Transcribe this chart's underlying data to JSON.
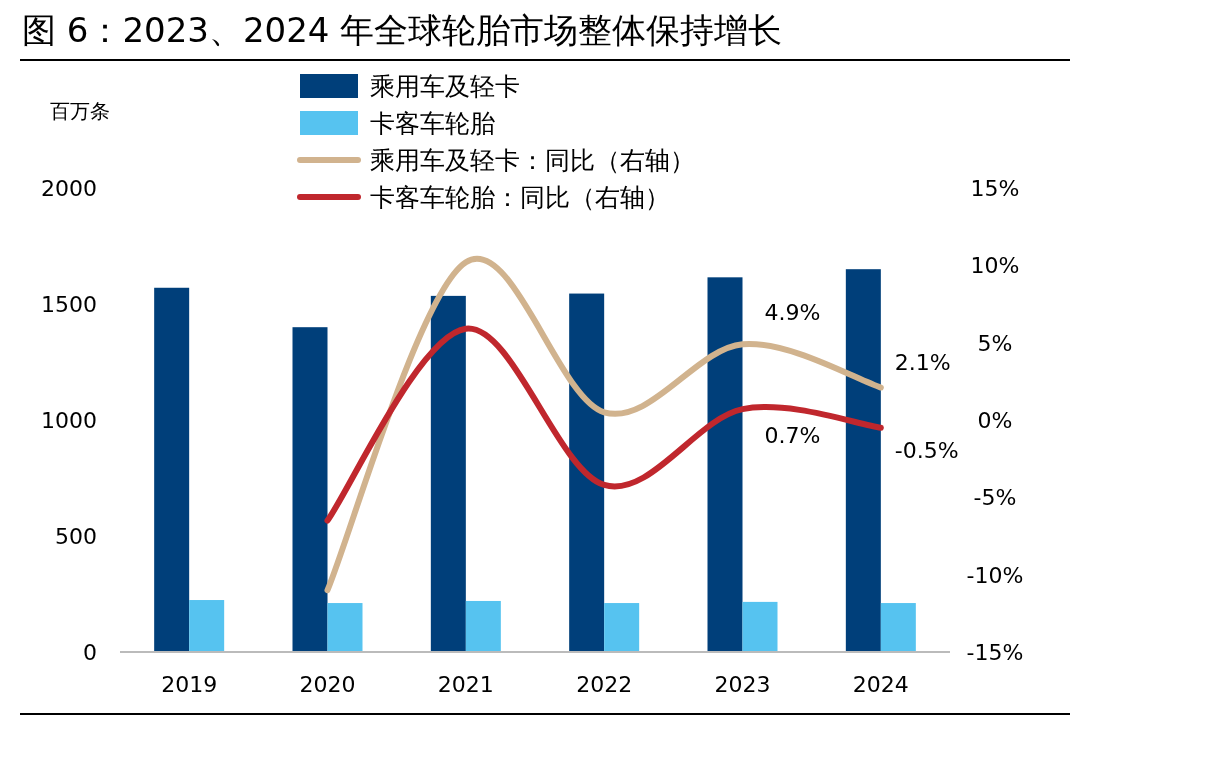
{
  "chart_data": {
    "type": "bar",
    "title": "图 6：2023、2024 年全球轮胎市场整体保持增长",
    "ylabel": "百万条",
    "categories": [
      "2019",
      "2020",
      "2021",
      "2022",
      "2023",
      "2024"
    ],
    "series": [
      {
        "name": "乘用车及轻卡",
        "color": "#003f7a",
        "values": [
          1570,
          1400,
          1535,
          1545,
          1615,
          1650
        ]
      },
      {
        "name": "卡客车轮胎",
        "color": "#56c3f0",
        "values": [
          224,
          211,
          220,
          211,
          216,
          211
        ]
      },
      {
        "name": "乘用车及轻卡：同比（右轴）",
        "type": "line",
        "axis": "y2",
        "color": "#d1b38e",
        "values": [
          null,
          -11.0,
          10.2,
          0.5,
          4.9,
          2.1
        ],
        "value_labels": [
          null,
          null,
          null,
          null,
          "4.9%",
          "2.1%"
        ]
      },
      {
        "name": "卡客车轮胎：同比（右轴）",
        "type": "line",
        "axis": "y2",
        "color": "#c0272d",
        "values": [
          null,
          -6.5,
          5.9,
          -4.2,
          0.7,
          -0.5
        ],
        "value_labels": [
          null,
          null,
          null,
          null,
          "0.7%",
          "-0.5%"
        ]
      }
    ],
    "ylim": [
      0,
      2000
    ],
    "yticks": [
      0,
      500,
      1000,
      1500,
      2000
    ],
    "y2lim": [
      -15,
      15
    ],
    "y2ticks": [
      {
        "value": -15,
        "label": "-15%"
      },
      {
        "value": -10,
        "label": "-10%"
      },
      {
        "value": -5,
        "label": "-5%"
      },
      {
        "value": 0,
        "label": "0%"
      },
      {
        "value": 5,
        "label": "5%"
      },
      {
        "value": 10,
        "label": "10%"
      },
      {
        "value": 15,
        "label": "15%"
      }
    ],
    "legend": "top"
  }
}
